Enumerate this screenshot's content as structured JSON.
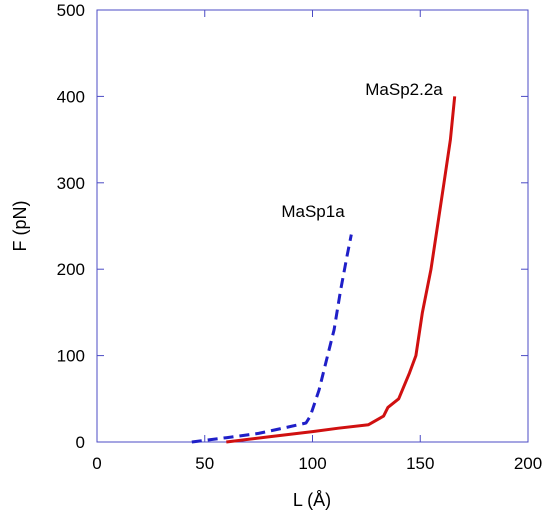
{
  "chart_data": {
    "type": "line",
    "xlabel": "L (Å)",
    "ylabel": "F (pN)",
    "xlim": [
      0,
      200
    ],
    "ylim": [
      0,
      500
    ],
    "xticks": [
      "0",
      "50",
      "100",
      "150",
      "200"
    ],
    "yticks": [
      "0",
      "100",
      "200",
      "300",
      "400",
      "500"
    ],
    "grid": false,
    "series": [
      {
        "name": "MaSp1a",
        "color": "#1f1fc8",
        "dash": "dashed",
        "x": [
          44,
          60,
          75,
          90,
          97,
          99,
          103,
          107,
          110,
          113,
          116,
          118
        ],
        "y": [
          0,
          5,
          10,
          18,
          22,
          30,
          60,
          100,
          130,
          175,
          215,
          240
        ]
      },
      {
        "name": "MaSp2.2a",
        "color": "#d01010",
        "dash": "solid",
        "x": [
          60,
          80,
          100,
          112,
          126,
          133,
          135,
          140,
          145,
          148,
          151,
          155,
          158,
          161,
          164,
          166
        ],
        "y": [
          0,
          6,
          12,
          16,
          20,
          30,
          40,
          50,
          80,
          100,
          150,
          200,
          250,
          300,
          350,
          400
        ]
      }
    ],
    "annotations": [
      {
        "text": "MaSp1a",
        "series": "MaSp1a"
      },
      {
        "text": "MaSp2.2a",
        "series": "MaSp2.2a"
      }
    ],
    "axis_color": "#4b4bc4"
  }
}
